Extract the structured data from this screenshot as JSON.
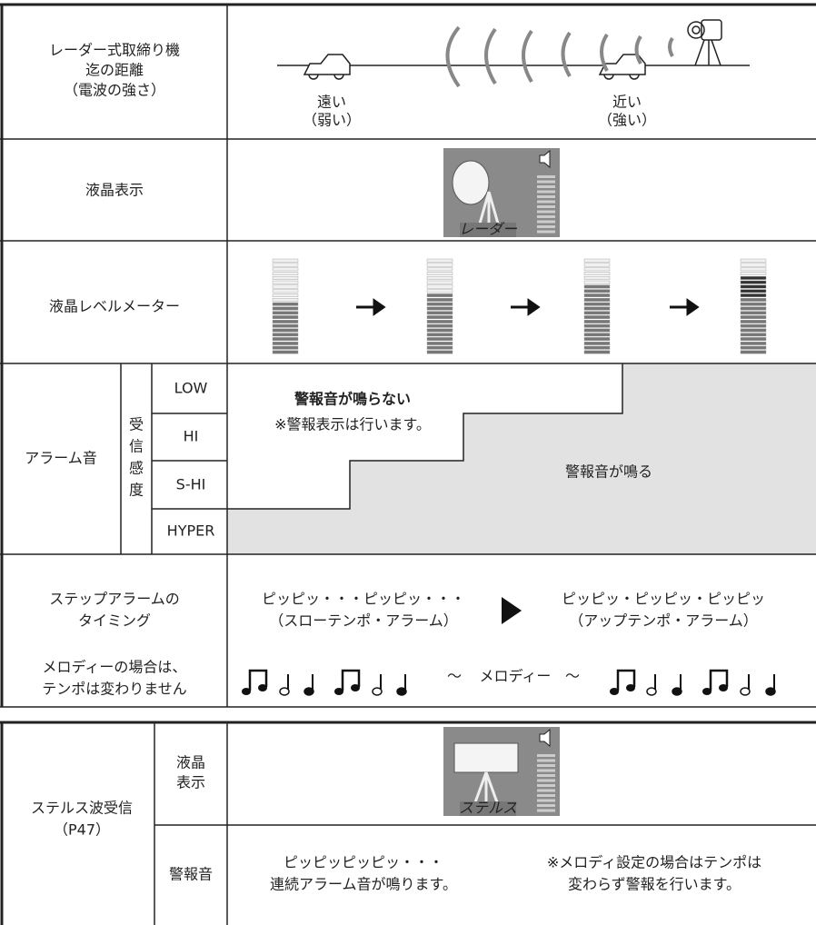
{
  "distance": {
    "label": [
      "レーダー式取締り機",
      "迄の距離",
      "（電波の強さ）"
    ],
    "far": [
      "遠い",
      "（弱い）"
    ],
    "near": [
      "近い",
      "（強い）"
    ]
  },
  "lcd": {
    "label": "液晶表示",
    "icon_text": "レーダー"
  },
  "meter": {
    "label": "液晶レベルメーター"
  },
  "alarm": {
    "label": "アラーム音",
    "sensitivity": [
      "受",
      "信",
      "感",
      "度"
    ],
    "levels": [
      "LOW",
      "HI",
      "S-HI",
      "HYPER"
    ],
    "no_sound": "警報音が鳴らない",
    "note": "※警報表示は行います。",
    "sound": "警報音が鳴る"
  },
  "timing": {
    "label": [
      "ステップアラームの",
      "タイミング"
    ],
    "slow": [
      "ピッピッ・・・ピッピッ・・・",
      "（スローテンポ・アラーム）"
    ],
    "fast": [
      "ピッピッ・ピッピッ・ピッピッ",
      "（アップテンポ・アラーム）"
    ]
  },
  "melody": {
    "label": [
      "メロディーの場合は、",
      "テンポは変わりません"
    ],
    "tilde_left": "～",
    "text": "メロディー",
    "tilde_right": "～"
  },
  "stealth": {
    "label": [
      "ステルス波受信",
      "（P47）"
    ],
    "lcd_label": [
      "液晶",
      "表示"
    ],
    "icon_text": "ステルス",
    "sound_label": "警報音",
    "sound": [
      "ピッピッピッピッ・・・",
      "連続アラーム音が鳴ります。"
    ],
    "note": [
      "※メロディ設定の場合はテンポは",
      "変わらず警報を行います。"
    ]
  }
}
